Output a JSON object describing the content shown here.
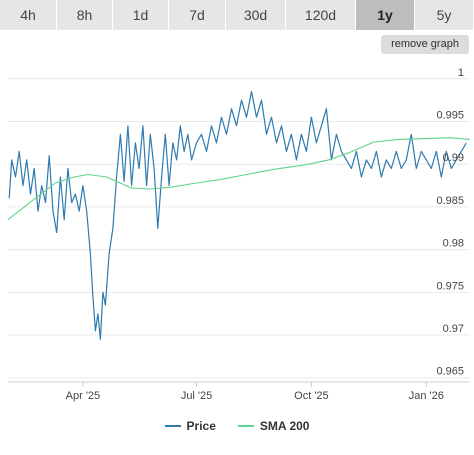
{
  "tabs": [
    {
      "label": "4h",
      "active": false
    },
    {
      "label": "8h",
      "active": false
    },
    {
      "label": "1d",
      "active": false
    },
    {
      "label": "7d",
      "active": false
    },
    {
      "label": "30d",
      "active": false
    },
    {
      "label": "120d",
      "active": false
    },
    {
      "label": "1y",
      "active": true
    },
    {
      "label": "5y",
      "active": false
    }
  ],
  "remove_graph_label": "remove graph",
  "colors": {
    "price": "#2f7ab0",
    "sma": "#5fd38a",
    "grid": "#e9e9e9"
  },
  "legend": {
    "price_label": "Price",
    "sma_label": "SMA 200"
  },
  "chart_data": {
    "type": "line",
    "title": "",
    "xlabel": "",
    "ylabel": "",
    "ylim": [
      0.9645,
      1.0015
    ],
    "y_ticks": [
      {
        "value": 1,
        "label": "1"
      },
      {
        "value": 0.995,
        "label": "0.995"
      },
      {
        "value": 0.99,
        "label": "0.99"
      },
      {
        "value": 0.985,
        "label": "0.985"
      },
      {
        "value": 0.98,
        "label": "0.98"
      },
      {
        "value": 0.975,
        "label": "0.975"
      },
      {
        "value": 0.97,
        "label": "0.97"
      },
      {
        "value": 0.965,
        "label": "0.965"
      }
    ],
    "xlim": [
      "2025-01-31",
      "2026-02-05"
    ],
    "x_ticks": [
      {
        "value": "2025-04-01",
        "label": "Apr '25"
      },
      {
        "value": "2025-07-01",
        "label": "Jul '25"
      },
      {
        "value": "2025-10-01",
        "label": "Oct '25"
      },
      {
        "value": "2026-01-01",
        "label": "Jan '26"
      }
    ],
    "grid": true,
    "legend_position": "bottom",
    "series": [
      {
        "name": "Price",
        "points": [
          [
            "2025-02-01",
            0.986
          ],
          [
            "2025-02-03",
            0.9905
          ],
          [
            "2025-02-06",
            0.9885
          ],
          [
            "2025-02-09",
            0.9915
          ],
          [
            "2025-02-12",
            0.9875
          ],
          [
            "2025-02-15",
            0.9905
          ],
          [
            "2025-02-18",
            0.9865
          ],
          [
            "2025-02-21",
            0.9895
          ],
          [
            "2025-02-24",
            0.9845
          ],
          [
            "2025-02-27",
            0.9875
          ],
          [
            "2025-03-02",
            0.9855
          ],
          [
            "2025-03-05",
            0.991
          ],
          [
            "2025-03-08",
            0.9845
          ],
          [
            "2025-03-11",
            0.982
          ],
          [
            "2025-03-14",
            0.9885
          ],
          [
            "2025-03-17",
            0.9835
          ],
          [
            "2025-03-20",
            0.9895
          ],
          [
            "2025-03-23",
            0.9855
          ],
          [
            "2025-03-26",
            0.9865
          ],
          [
            "2025-03-29",
            0.9845
          ],
          [
            "2025-04-01",
            0.9875
          ],
          [
            "2025-04-04",
            0.9845
          ],
          [
            "2025-04-07",
            0.9795
          ],
          [
            "2025-04-09",
            0.9745
          ],
          [
            "2025-04-11",
            0.9705
          ],
          [
            "2025-04-13",
            0.9725
          ],
          [
            "2025-04-15",
            0.9695
          ],
          [
            "2025-04-17",
            0.975
          ],
          [
            "2025-04-19",
            0.9735
          ],
          [
            "2025-04-22",
            0.9795
          ],
          [
            "2025-04-25",
            0.9825
          ],
          [
            "2025-04-28",
            0.9885
          ],
          [
            "2025-05-01",
            0.9935
          ],
          [
            "2025-05-04",
            0.988
          ],
          [
            "2025-05-07",
            0.9945
          ],
          [
            "2025-05-10",
            0.9875
          ],
          [
            "2025-05-13",
            0.9925
          ],
          [
            "2025-05-16",
            0.9895
          ],
          [
            "2025-05-19",
            0.9945
          ],
          [
            "2025-05-22",
            0.9875
          ],
          [
            "2025-05-25",
            0.9935
          ],
          [
            "2025-05-28",
            0.9895
          ],
          [
            "2025-05-31",
            0.9825
          ],
          [
            "2025-06-03",
            0.9885
          ],
          [
            "2025-06-06",
            0.9935
          ],
          [
            "2025-06-09",
            0.9875
          ],
          [
            "2025-06-12",
            0.9925
          ],
          [
            "2025-06-15",
            0.9905
          ],
          [
            "2025-06-18",
            0.9945
          ],
          [
            "2025-06-21",
            0.9915
          ],
          [
            "2025-06-24",
            0.9935
          ],
          [
            "2025-06-27",
            0.9905
          ],
          [
            "2025-07-01",
            0.9925
          ],
          [
            "2025-07-05",
            0.9935
          ],
          [
            "2025-07-09",
            0.9915
          ],
          [
            "2025-07-13",
            0.9945
          ],
          [
            "2025-07-17",
            0.9925
          ],
          [
            "2025-07-21",
            0.9955
          ],
          [
            "2025-07-25",
            0.9935
          ],
          [
            "2025-07-29",
            0.9965
          ],
          [
            "2025-08-02",
            0.9945
          ],
          [
            "2025-08-06",
            0.9975
          ],
          [
            "2025-08-10",
            0.9955
          ],
          [
            "2025-08-14",
            0.9985
          ],
          [
            "2025-08-18",
            0.9955
          ],
          [
            "2025-08-22",
            0.9975
          ],
          [
            "2025-08-26",
            0.9935
          ],
          [
            "2025-08-30",
            0.9955
          ],
          [
            "2025-09-03",
            0.9925
          ],
          [
            "2025-09-07",
            0.9945
          ],
          [
            "2025-09-11",
            0.9915
          ],
          [
            "2025-09-15",
            0.9935
          ],
          [
            "2025-09-19",
            0.9905
          ],
          [
            "2025-09-23",
            0.9935
          ],
          [
            "2025-09-27",
            0.9915
          ],
          [
            "2025-10-01",
            0.9955
          ],
          [
            "2025-10-05",
            0.9925
          ],
          [
            "2025-10-09",
            0.9945
          ],
          [
            "2025-10-13",
            0.9965
          ],
          [
            "2025-10-17",
            0.9905
          ],
          [
            "2025-10-21",
            0.9935
          ],
          [
            "2025-10-25",
            0.9915
          ],
          [
            "2025-10-29",
            0.9905
          ],
          [
            "2025-11-02",
            0.9895
          ],
          [
            "2025-11-06",
            0.9915
          ],
          [
            "2025-11-10",
            0.9885
          ],
          [
            "2025-11-14",
            0.9905
          ],
          [
            "2025-11-18",
            0.9895
          ],
          [
            "2025-11-22",
            0.9915
          ],
          [
            "2025-11-26",
            0.9885
          ],
          [
            "2025-11-30",
            0.9905
          ],
          [
            "2025-12-04",
            0.9895
          ],
          [
            "2025-12-08",
            0.9915
          ],
          [
            "2025-12-12",
            0.9895
          ],
          [
            "2025-12-16",
            0.9905
          ],
          [
            "2025-12-20",
            0.9935
          ],
          [
            "2025-12-24",
            0.9895
          ],
          [
            "2025-12-28",
            0.9915
          ],
          [
            "2026-01-01",
            0.9905
          ],
          [
            "2026-01-05",
            0.9895
          ],
          [
            "2026-01-09",
            0.9915
          ],
          [
            "2026-01-13",
            0.9885
          ],
          [
            "2026-01-17",
            0.9915
          ],
          [
            "2026-01-21",
            0.9895
          ],
          [
            "2026-01-25",
            0.9905
          ],
          [
            "2026-01-29",
            0.9915
          ],
          [
            "2026-02-02",
            0.9925
          ]
        ]
      },
      {
        "name": "SMA 200",
        "points": [
          [
            "2025-01-31",
            0.9835
          ],
          [
            "2025-02-20",
            0.9858
          ],
          [
            "2025-03-10",
            0.9878
          ],
          [
            "2025-03-25",
            0.9885
          ],
          [
            "2025-04-05",
            0.9888
          ],
          [
            "2025-04-20",
            0.9885
          ],
          [
            "2025-05-01",
            0.9878
          ],
          [
            "2025-05-10",
            0.9872
          ],
          [
            "2025-05-25",
            0.9871
          ],
          [
            "2025-06-10",
            0.9873
          ],
          [
            "2025-07-01",
            0.9878
          ],
          [
            "2025-07-20",
            0.9882
          ],
          [
            "2025-08-10",
            0.9888
          ],
          [
            "2025-09-01",
            0.9894
          ],
          [
            "2025-09-25",
            0.9899
          ],
          [
            "2025-10-15",
            0.9905
          ],
          [
            "2025-11-01",
            0.9914
          ],
          [
            "2025-11-20",
            0.9926
          ],
          [
            "2025-12-10",
            0.9929
          ],
          [
            "2025-12-31",
            0.993
          ],
          [
            "2026-01-20",
            0.9931
          ],
          [
            "2026-02-05",
            0.9929
          ]
        ]
      }
    ]
  }
}
